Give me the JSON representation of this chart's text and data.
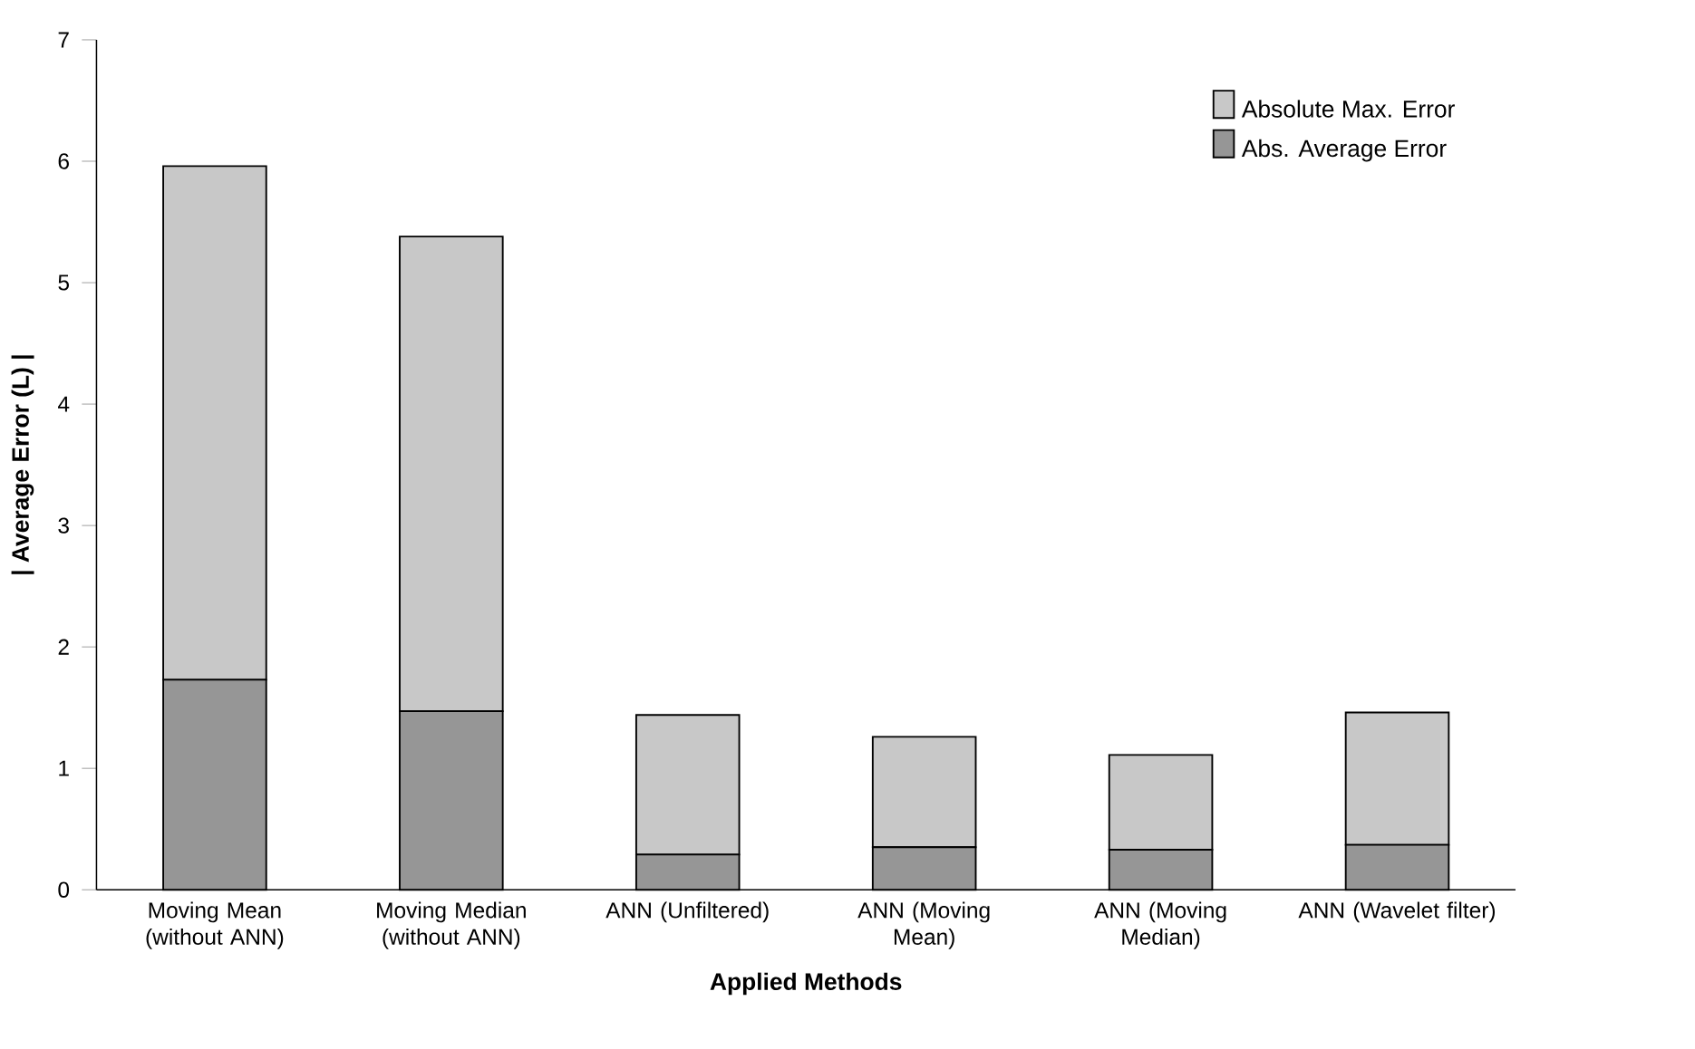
{
  "chart_data": {
    "type": "bar",
    "stacked": true,
    "xlabel": "Applied Methods",
    "ylabel": "| Average Error (L) |",
    "categories": [
      "Moving Mean (without ANN)",
      "Moving Median (without ANN)",
      "ANN (Unfiltered)",
      "ANN (Moving Mean)",
      "ANN (Moving Median)",
      "ANN (Wavelet filter)"
    ],
    "series": [
      {
        "name": "Abs. Average Error",
        "color": "#969696",
        "values": [
          1.73,
          1.47,
          0.29,
          0.35,
          0.33,
          0.37
        ]
      },
      {
        "name": "Absolute Max. Error",
        "color": "#c8c8c8",
        "values": [
          4.23,
          3.91,
          1.15,
          0.91,
          0.78,
          1.09
        ]
      }
    ],
    "ylim": [
      0,
      7
    ],
    "yticks": [
      0,
      1,
      2,
      3,
      4,
      5,
      6,
      7
    ],
    "grid": false,
    "legend": "top right"
  }
}
